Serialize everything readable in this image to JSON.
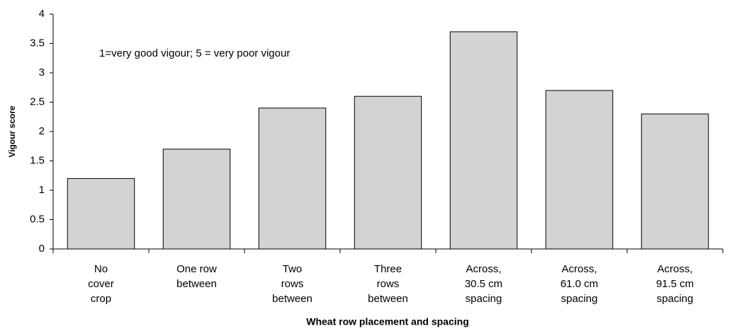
{
  "chart_data": {
    "type": "bar",
    "annotation": "1=very good vigour;  5 = very poor  vigour",
    "x_label": "Wheat row placement and spacing",
    "y_label": "Vigour score",
    "categories": [
      "No\ncover\ncrop",
      "One row\nbetween",
      "Two\nrows\nbetween",
      "Three\nrows\nbetween",
      "Across,\n30.5 cm\nspacing",
      "Across,\n61.0 cm\nspacing",
      "Across,\n91.5 cm\nspacing"
    ],
    "values": [
      1.2,
      1.7,
      2.4,
      2.6,
      3.7,
      2.7,
      2.3
    ],
    "color": "#d3d3d3",
    "ylim": [
      0,
      4
    ],
    "yticks": [
      0,
      0.5,
      1,
      1.5,
      2,
      2.5,
      3,
      3.5,
      4
    ],
    "grid": false
  }
}
